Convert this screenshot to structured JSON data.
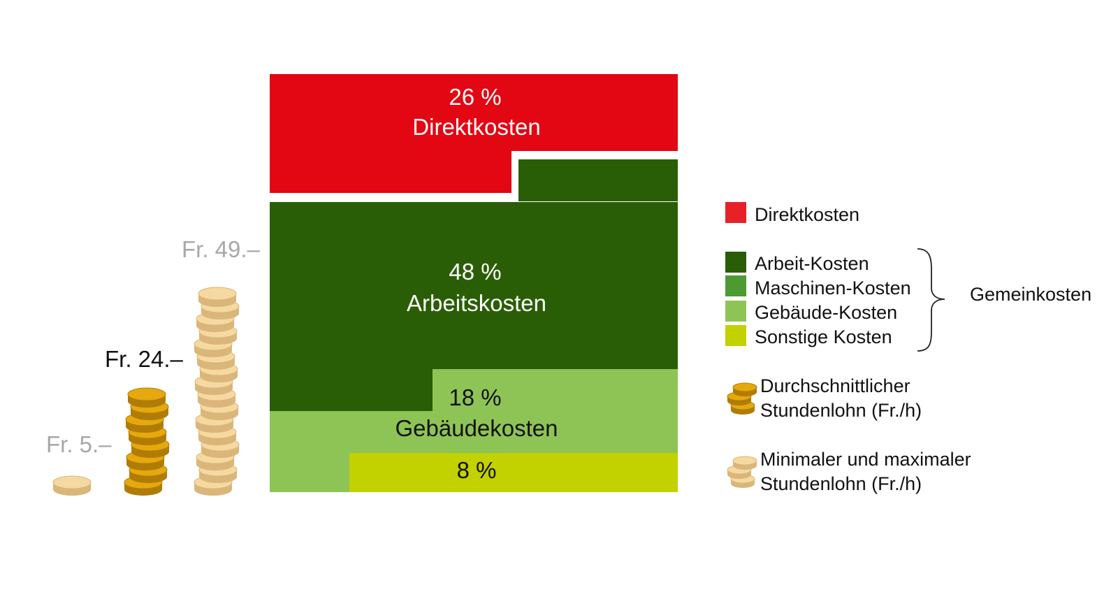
{
  "colors": {
    "direct": "#e30613",
    "direct_legend": "#e52228",
    "labor": "#2a5e06",
    "machine": "#4d9a33",
    "building": "#8ec455",
    "other": "#c2d100",
    "coin_avg": "#e5a90d",
    "coin_avg_edge": "#b07c06",
    "coin_minmax": "#f5d9a0",
    "coin_minmax_edge": "#dab67a",
    "wage_min_max_text": "#a8a8a8",
    "wage_avg_text": "#111111"
  },
  "chart_data": {
    "type": "treemap",
    "segments": [
      {
        "key": "direct",
        "percent_label": "26 %",
        "name": "Direktkosten",
        "value": 26
      },
      {
        "key": "labor",
        "percent_label": "48 %",
        "name": "Arbeitskosten",
        "value": 48
      },
      {
        "key": "building",
        "percent_label": "18 %",
        "name": "Gebäudekosten",
        "value": 18
      },
      {
        "key": "other",
        "percent_label": "8 %",
        "name": "",
        "value": 8
      }
    ],
    "wages": [
      {
        "key": "min",
        "label": "Fr. 5.–",
        "value": 5,
        "coins": 1
      },
      {
        "key": "avg",
        "label": "Fr. 24.–",
        "value": 24,
        "coins": 8
      },
      {
        "key": "max",
        "label": "Fr. 49.–",
        "value": 49,
        "coins": 16
      }
    ],
    "legend": {
      "direct": "Direktkosten",
      "overhead_items": [
        {
          "key": "labor",
          "label": "Arbeit-Kosten"
        },
        {
          "key": "machine",
          "label": "Maschinen-Kosten"
        },
        {
          "key": "building",
          "label": "Gebäude-Kosten"
        },
        {
          "key": "other",
          "label": "Sonstige Kosten"
        }
      ],
      "overhead_group": "Gemeinkosten",
      "avg_wage": "Durchschnittlicher Stundenlohn (Fr./h)",
      "minmax_wage": "Minimaler und maximaler Stundenlohn (Fr./h)"
    }
  }
}
